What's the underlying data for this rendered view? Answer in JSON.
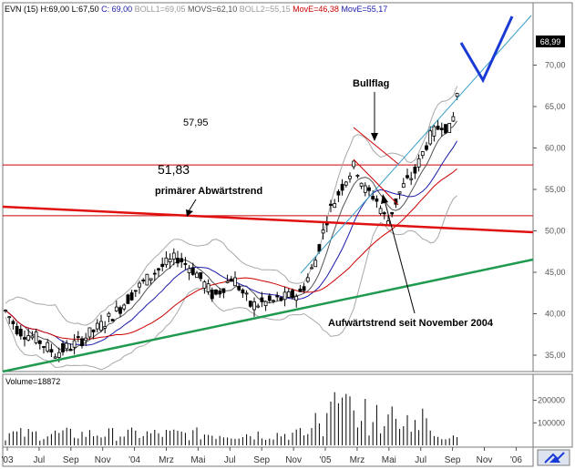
{
  "chart_data": {
    "type": "candlestick",
    "header": {
      "symbol": "EVN (15)",
      "high": "H:69,00",
      "low": "L:67,50",
      "close": "C: 69,00",
      "boll1": "BOLL1=69,05",
      "movs": "MOVS=62,10",
      "boll2": "BOLL2=55,15",
      "move1": "MovE=46,38",
      "move2": "MovE=55,17"
    },
    "last_price_label": "68,99",
    "price_axis": {
      "range": [
        33.5,
        72
      ],
      "ticks": [
        "35,00",
        "40,00",
        "45,00",
        "50,00",
        "55,00",
        "60,00",
        "65,00",
        "70,00"
      ]
    },
    "x_axis": {
      "labels": [
        "'03",
        "Jul",
        "Sep",
        "Nov",
        "'04",
        "Mrz",
        "Mai",
        "Jul",
        "Sep",
        "Nov",
        "'05",
        "Mrz",
        "Mai",
        "Jul",
        "Sep",
        "Nov",
        "'06"
      ]
    },
    "volume": {
      "label": "Volume=18872",
      "ticks": [
        "100000",
        "200000"
      ],
      "range": [
        0,
        270000
      ]
    },
    "horizontal_levels": [
      {
        "label": "57,95",
        "value": 57.95
      },
      {
        "label": "51,83",
        "value": 51.83
      }
    ],
    "annotations": {
      "bullflag": "Bullflag",
      "downtrend": "primärer Abwärtstrend",
      "uptrend": "Aufwärtstrend seit November 2004"
    },
    "colors": {
      "candles": "#000000",
      "bollinger": "#a8a8a8",
      "moving_avg_1": "#2a7a2a",
      "ema_red": "#cc0000",
      "ema_blue": "#1a1aa8",
      "support_green": "#1f9a4e",
      "resistance_red": "#e01010",
      "forecast": "#1a3ad6",
      "trend_cyan": "#3aa0c8"
    }
  }
}
